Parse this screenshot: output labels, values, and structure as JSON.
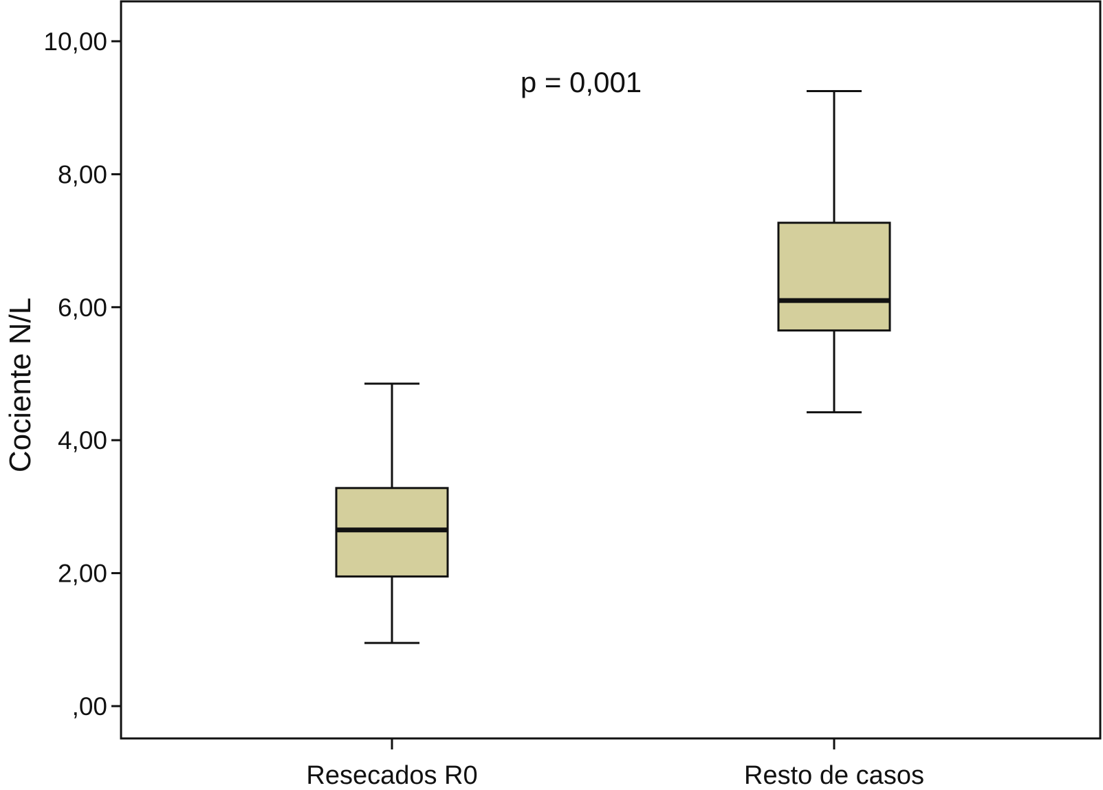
{
  "chart_data": {
    "type": "box",
    "title": "",
    "xlabel": "",
    "ylabel": "Cociente N/L",
    "ylim": [
      -0.5,
      10.5
    ],
    "yticks": [
      0,
      2,
      4,
      6,
      8,
      10
    ],
    "ytick_labels": [
      ",00",
      "2,00",
      "4,00",
      "6,00",
      "8,00",
      "10,00"
    ],
    "categories": [
      "Resecados R0",
      "Resto de casos"
    ],
    "boxes": [
      {
        "category": "Resecados R0",
        "whisker_low": 0.95,
        "q1": 1.95,
        "median": 2.65,
        "q3": 3.28,
        "whisker_high": 4.85
      },
      {
        "category": "Resto de casos",
        "whisker_low": 4.42,
        "q1": 5.65,
        "median": 6.1,
        "q3": 7.27,
        "whisker_high": 9.25
      }
    ],
    "annotation": "p = 0,001",
    "box_color": "#d4cf9c",
    "grid": false,
    "legend": "none"
  }
}
